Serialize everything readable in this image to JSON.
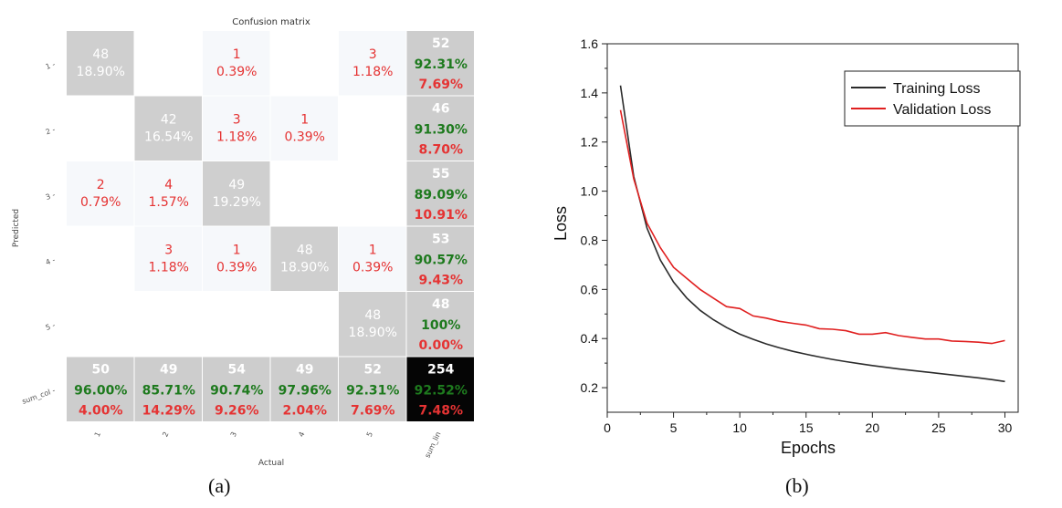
{
  "figure_captions": {
    "a": "(a)",
    "b": "(b)"
  },
  "chart_data": [
    {
      "type": "heatmap",
      "title": "Confusion matrix",
      "xlabel": "Actual",
      "ylabel": "Predicted",
      "row_labels": [
        "1",
        "2",
        "3",
        "4",
        "5",
        "sum_col"
      ],
      "col_labels": [
        "1",
        "2",
        "3",
        "4",
        "5",
        "sum_lin"
      ],
      "colors": {
        "diagonal": "#cfcfcf",
        "offdiag": "#f6f8fb",
        "total": "#050505",
        "summary": "#cdcdcd",
        "good": "#1e7a1e",
        "bad": "#e53333",
        "light_text": "#ffffff"
      },
      "cells": [
        {
          "row": 0,
          "col": 0,
          "count": "48",
          "percent": "18.90%"
        },
        {
          "row": 0,
          "col": 2,
          "count": "1",
          "percent": "0.39%"
        },
        {
          "row": 0,
          "col": 4,
          "count": "3",
          "percent": "1.18%"
        },
        {
          "row": 1,
          "col": 1,
          "count": "42",
          "percent": "16.54%"
        },
        {
          "row": 1,
          "col": 2,
          "count": "3",
          "percent": "1.18%"
        },
        {
          "row": 1,
          "col": 3,
          "count": "1",
          "percent": "0.39%"
        },
        {
          "row": 2,
          "col": 0,
          "count": "2",
          "percent": "0.79%"
        },
        {
          "row": 2,
          "col": 1,
          "count": "4",
          "percent": "1.57%"
        },
        {
          "row": 2,
          "col": 2,
          "count": "49",
          "percent": "19.29%"
        },
        {
          "row": 3,
          "col": 1,
          "count": "3",
          "percent": "1.18%"
        },
        {
          "row": 3,
          "col": 2,
          "count": "1",
          "percent": "0.39%"
        },
        {
          "row": 3,
          "col": 3,
          "count": "48",
          "percent": "18.90%"
        },
        {
          "row": 3,
          "col": 4,
          "count": "1",
          "percent": "0.39%"
        },
        {
          "row": 4,
          "col": 4,
          "count": "48",
          "percent": "18.90%"
        }
      ],
      "row_summary": [
        {
          "count": "52",
          "correct": "92.31%",
          "error": "7.69%"
        },
        {
          "count": "46",
          "correct": "91.30%",
          "error": "8.70%"
        },
        {
          "count": "55",
          "correct": "89.09%",
          "error": "10.91%"
        },
        {
          "count": "53",
          "correct": "90.57%",
          "error": "9.43%"
        },
        {
          "count": "48",
          "correct": "100%",
          "error": "0.00%"
        }
      ],
      "col_summary": [
        {
          "count": "50",
          "correct": "96.00%",
          "error": "4.00%"
        },
        {
          "count": "49",
          "correct": "85.71%",
          "error": "14.29%"
        },
        {
          "count": "54",
          "correct": "90.74%",
          "error": "9.26%"
        },
        {
          "count": "49",
          "correct": "97.96%",
          "error": "2.04%"
        },
        {
          "count": "52",
          "correct": "92.31%",
          "error": "7.69%"
        }
      ],
      "total": {
        "count": "254",
        "correct": "92.52%",
        "error": "7.48%"
      }
    },
    {
      "type": "line",
      "xlabel": "Epochs",
      "ylabel": "Loss",
      "xlim": [
        0,
        31
      ],
      "ylim": [
        0.1,
        1.6
      ],
      "xticks": [
        0,
        5,
        10,
        15,
        20,
        25,
        30
      ],
      "yticks": [
        0.2,
        0.4,
        0.6,
        0.8,
        1.0,
        1.2,
        1.4,
        1.6
      ],
      "ytick_labels": [
        "0.2",
        "0.4",
        "0.6",
        "0.8",
        "1.0",
        "1.2",
        "1.4",
        "1.6"
      ],
      "grid": false,
      "legend_position": "top-right",
      "series": [
        {
          "name": "Training Loss",
          "color": "#2b2b2b",
          "x": [
            1,
            2,
            3,
            4,
            5,
            6,
            7,
            8,
            9,
            10,
            11,
            12,
            13,
            14,
            15,
            16,
            17,
            18,
            19,
            20,
            21,
            22,
            23,
            24,
            25,
            26,
            27,
            28,
            29,
            30
          ],
          "values": [
            1.43,
            1.06,
            0.85,
            0.72,
            0.63,
            0.565,
            0.515,
            0.477,
            0.445,
            0.418,
            0.397,
            0.378,
            0.362,
            0.348,
            0.336,
            0.325,
            0.315,
            0.306,
            0.298,
            0.29,
            0.283,
            0.276,
            0.27,
            0.264,
            0.258,
            0.252,
            0.246,
            0.24,
            0.233,
            0.225
          ]
        },
        {
          "name": "Validation Loss",
          "color": "#e02020",
          "x": [
            1,
            2,
            3,
            4,
            5,
            6,
            7,
            8,
            9,
            10,
            11,
            12,
            13,
            14,
            15,
            16,
            17,
            18,
            19,
            20,
            21,
            22,
            23,
            24,
            25,
            26,
            27,
            28,
            29,
            30
          ],
          "values": [
            1.33,
            1.05,
            0.87,
            0.77,
            0.69,
            0.645,
            0.6,
            0.565,
            0.53,
            0.522,
            0.492,
            0.483,
            0.47,
            0.462,
            0.455,
            0.44,
            0.438,
            0.432,
            0.418,
            0.418,
            0.424,
            0.412,
            0.405,
            0.398,
            0.398,
            0.39,
            0.388,
            0.385,
            0.38,
            0.392
          ]
        }
      ]
    }
  ]
}
